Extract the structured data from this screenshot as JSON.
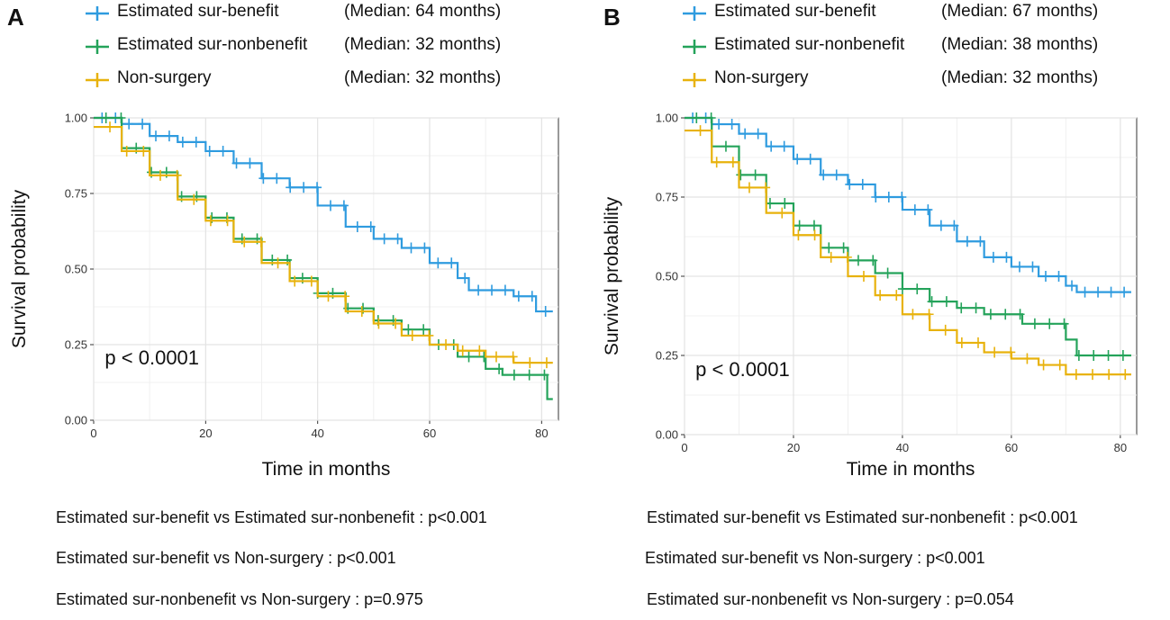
{
  "chart_data": [
    {
      "type": "line",
      "panel": "A",
      "xlabel": "Time in months",
      "ylabel": "Survival probability",
      "xlim": [
        0,
        83
      ],
      "ylim": [
        0,
        1
      ],
      "xticks": [
        "0",
        "20",
        "40",
        "60",
        "80"
      ],
      "yticks": [
        "0.00",
        "0.25",
        "0.50",
        "0.75",
        "1.00"
      ],
      "grid": true,
      "pvalue_annotation": "p < 0.0001",
      "legend": [
        {
          "label": "Estimated sur-benefit",
          "median": "(Median: 64 months)",
          "color": "#2E9BDF"
        },
        {
          "label": "Estimated sur-nonbenefit",
          "median": "(Median: 32 months)",
          "color": "#24A35A"
        },
        {
          "label": "Non-surgery",
          "median": "(Median: 32 months)",
          "color": "#E8B20C"
        }
      ],
      "series": [
        {
          "name": "Estimated sur-benefit",
          "color": "#2E9BDF",
          "x": [
            0,
            5,
            10,
            15,
            20,
            25,
            30,
            35,
            40,
            45,
            50,
            55,
            60,
            65,
            67,
            75,
            79,
            82
          ],
          "y": [
            1.0,
            0.98,
            0.94,
            0.92,
            0.89,
            0.85,
            0.8,
            0.77,
            0.71,
            0.64,
            0.6,
            0.57,
            0.52,
            0.47,
            0.43,
            0.41,
            0.36,
            0.36
          ]
        },
        {
          "name": "Estimated sur-nonbenefit",
          "color": "#24A35A",
          "x": [
            0,
            5,
            10,
            15,
            20,
            25,
            30,
            35,
            40,
            45,
            50,
            55,
            60,
            65,
            70,
            73,
            79,
            81,
            82
          ],
          "y": [
            1.0,
            0.9,
            0.82,
            0.74,
            0.67,
            0.6,
            0.53,
            0.47,
            0.42,
            0.37,
            0.33,
            0.3,
            0.25,
            0.21,
            0.17,
            0.15,
            0.15,
            0.07,
            0.07
          ]
        },
        {
          "name": "Non-surgery",
          "color": "#E8B20C",
          "x": [
            0,
            5,
            10,
            15,
            20,
            25,
            30,
            35,
            40,
            45,
            50,
            55,
            60,
            65,
            70,
            75,
            82
          ],
          "y": [
            0.97,
            0.89,
            0.81,
            0.73,
            0.66,
            0.59,
            0.52,
            0.46,
            0.41,
            0.36,
            0.32,
            0.28,
            0.25,
            0.23,
            0.21,
            0.19,
            0.19
          ]
        }
      ],
      "comparisons": [
        "Estimated sur-benefit vs Estimated sur-nonbenefit : p<0.001",
        "Estimated sur-benefit vs Non-surgery : p<0.001",
        "Estimated sur-nonbenefit vs Non-surgery : p=0.975"
      ]
    },
    {
      "type": "line",
      "panel": "B",
      "xlabel": "Time in months",
      "ylabel": "Survival probability",
      "xlim": [
        0,
        83
      ],
      "ylim": [
        0,
        1
      ],
      "xticks": [
        "0",
        "20",
        "40",
        "60",
        "80"
      ],
      "yticks": [
        "0.00",
        "0.25",
        "0.50",
        "0.75",
        "1.00"
      ],
      "grid": true,
      "pvalue_annotation": "p < 0.0001",
      "legend": [
        {
          "label": "Estimated sur-benefit",
          "median": "(Median: 67 months)",
          "color": "#2E9BDF"
        },
        {
          "label": "Estimated sur-nonbenefit",
          "median": "(Median: 38 months)",
          "color": "#24A35A"
        },
        {
          "label": "Non-surgery",
          "median": "(Median: 32 months)",
          "color": "#E8B20C"
        }
      ],
      "series": [
        {
          "name": "Estimated sur-benefit",
          "color": "#2E9BDF",
          "x": [
            0,
            5,
            10,
            15,
            20,
            25,
            30,
            35,
            40,
            45,
            50,
            55,
            60,
            65,
            70,
            72,
            82
          ],
          "y": [
            1.0,
            0.98,
            0.95,
            0.91,
            0.87,
            0.82,
            0.79,
            0.75,
            0.71,
            0.66,
            0.61,
            0.56,
            0.53,
            0.5,
            0.47,
            0.45,
            0.45
          ]
        },
        {
          "name": "Estimated sur-nonbenefit",
          "color": "#24A35A",
          "x": [
            0,
            5,
            10,
            15,
            20,
            25,
            30,
            35,
            40,
            45,
            50,
            55,
            60,
            62,
            70,
            72,
            82
          ],
          "y": [
            1.0,
            0.91,
            0.82,
            0.73,
            0.66,
            0.59,
            0.55,
            0.51,
            0.46,
            0.42,
            0.4,
            0.38,
            0.38,
            0.35,
            0.3,
            0.25,
            0.25
          ]
        },
        {
          "name": "Non-surgery",
          "color": "#E8B20C",
          "x": [
            0,
            5,
            10,
            15,
            20,
            25,
            30,
            35,
            40,
            45,
            50,
            55,
            60,
            65,
            70,
            75,
            82
          ],
          "y": [
            0.96,
            0.86,
            0.78,
            0.7,
            0.63,
            0.56,
            0.5,
            0.44,
            0.38,
            0.33,
            0.29,
            0.26,
            0.24,
            0.22,
            0.19,
            0.19,
            0.19
          ]
        }
      ],
      "comparisons": [
        "Estimated sur-benefit vs Estimated sur-nonbenefit : p<0.001",
        "Estimated sur-benefit vs Non-surgery : p<0.001",
        "Estimated sur-nonbenefit vs Non-surgery : p=0.054"
      ]
    }
  ]
}
